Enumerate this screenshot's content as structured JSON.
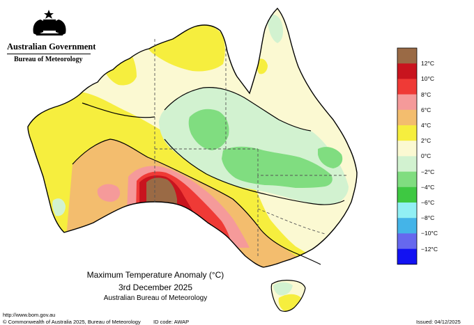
{
  "header": {
    "org": "Australian Government",
    "dept": "Bureau of Meteorology"
  },
  "map": {
    "title": "Maximum Temperature Anomaly (°C)",
    "date": "3rd December 2025",
    "credit": "Australian Bureau of Meteorology"
  },
  "footer": {
    "url": "http://www.bom.gov.au",
    "copyright": "© Commonwealth of Australia 2025, Bureau of Meteorology",
    "id_code": "ID code: AWAP",
    "issued": "Issued: 04/12/2025"
  },
  "legend": {
    "labels": [
      "12°C",
      "10°C",
      "8°C",
      "6°C",
      "4°C",
      "2°C",
      "0°C",
      "−2°C",
      "−4°C",
      "−6°C",
      "−8°C",
      "−10°C",
      "−12°C"
    ],
    "colors": [
      "#9a6a45",
      "#c8141e",
      "#ef3a36",
      "#f59a9a",
      "#f3bd6e",
      "#f6ee3e",
      "#fbf9d2",
      "#d2f2d0",
      "#80dd80",
      "#3ec842",
      "#92f0f4",
      "#44b4e8",
      "#6668ee",
      "#1212f2"
    ]
  }
}
